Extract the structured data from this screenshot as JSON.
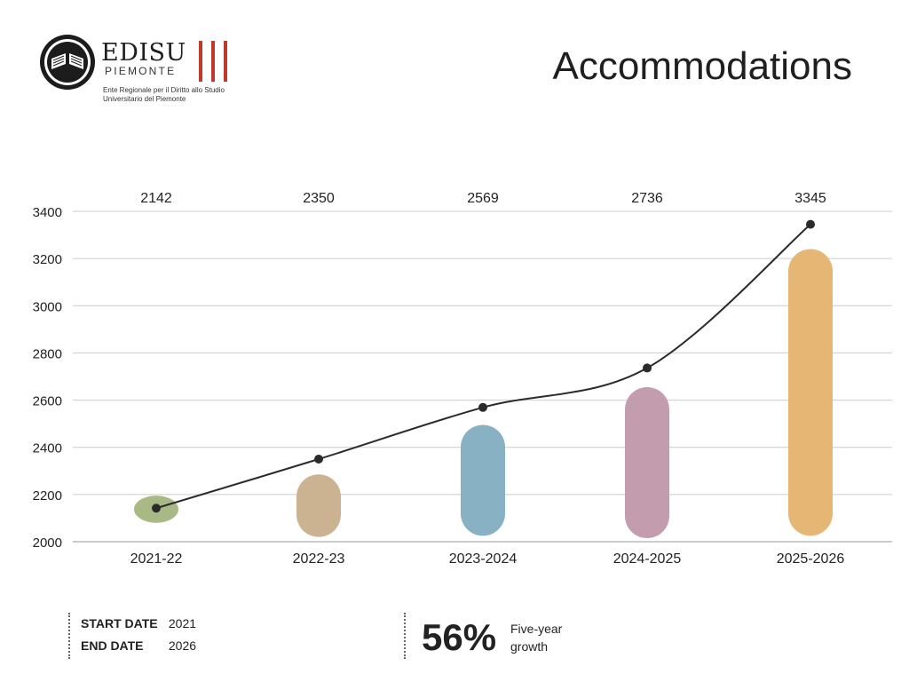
{
  "header": {
    "logo_text": "EDISU",
    "logo_sub": "PIEMONTE",
    "logo_tagline": "Ente Regionale per il Diritto allo Studio Universitario del Piemonte",
    "title": "Accommodations"
  },
  "chart_data": {
    "type": "bar",
    "categories": [
      "2021-22",
      "2022-23",
      "2023-2024",
      "2024-2025",
      "2025-2026"
    ],
    "values": [
      2142,
      2350,
      2569,
      2736,
      3345
    ],
    "bar_bottoms": [
      2080,
      2020,
      2025,
      2015,
      2025
    ],
    "bar_tops": [
      2195,
      2285,
      2495,
      2655,
      3240
    ],
    "value_labels": [
      "2142",
      "2350",
      "2569",
      "2736",
      "3345"
    ],
    "line_series": [
      2142,
      2350,
      2569,
      2736,
      3345
    ],
    "colors": [
      "#a9b985",
      "#cbb392",
      "#88b2c3",
      "#c39dae",
      "#e6b774"
    ],
    "ylim": [
      2000,
      3400
    ],
    "yticks": [
      2000,
      2200,
      2400,
      2600,
      2800,
      3000,
      3200,
      3400
    ],
    "grid": true,
    "title": "Accommodations",
    "xlabel": "",
    "ylabel": ""
  },
  "footer": {
    "start_label": "START DATE",
    "start_value": "2021",
    "end_label": "END DATE",
    "end_value": "2026",
    "growth_value": "56%",
    "growth_caption": "Five-year growth"
  },
  "colors": {
    "logo_red": "#c0392b",
    "line": "#2b2b2b",
    "grid": "#cccccc"
  }
}
